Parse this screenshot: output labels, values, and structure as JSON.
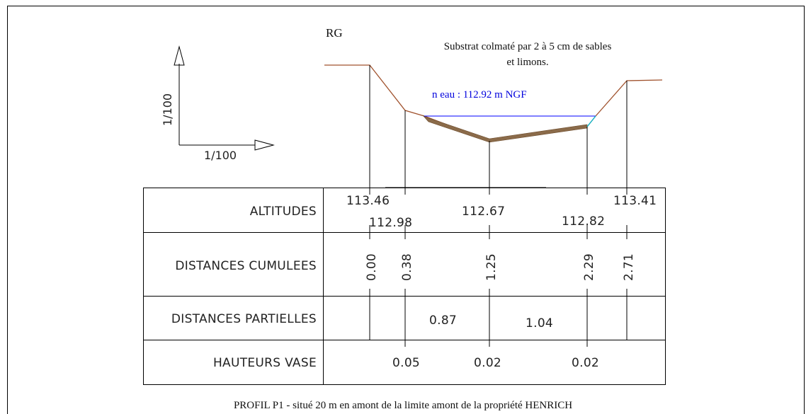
{
  "header_label": "RG",
  "note_line1": "Substrat colmaté par 2 à 5 cm de sables",
  "note_line2": "et limons.",
  "water_level_label": "n eau : 112.92 m NGF",
  "scale": {
    "vertical": "1/100",
    "horizontal": "1/100"
  },
  "rows": {
    "altitudes": "ALTITUDES",
    "distances_cumulees": "DISTANCES CUMULEES",
    "distances_partielles": "DISTANCES PARTIELLES",
    "hauteurs_vase": "HAUTEURS VASE"
  },
  "altitudes": [
    "113.46",
    "112.98",
    "112.67",
    "112.82",
    "113.41"
  ],
  "distances_cumulees": [
    "0.00",
    "0.38",
    "1.25",
    "2.29",
    "2.71"
  ],
  "distances_partielles": [
    "0.87",
    "1.04"
  ],
  "hauteurs_vase": [
    "0.05",
    "0.02",
    "0.02"
  ],
  "caption": "PROFIL P1  - situé 20 m en amont de la limite amont de la propriété HENRICH",
  "colors": {
    "bank": "#a0522d",
    "water": "#0000ff",
    "sediment": "#8b6b4a",
    "water_edge": "#00bcd4"
  }
}
